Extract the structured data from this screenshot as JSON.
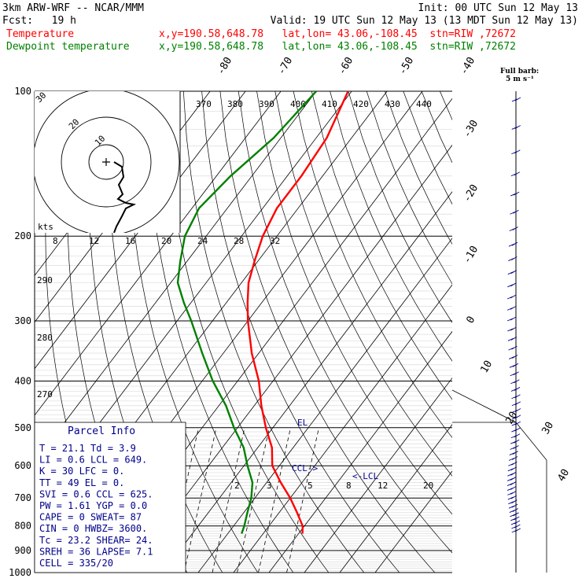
{
  "header": {
    "model": "3km ARW-WRF -- NCAR/MMM",
    "init": "Init: 00 UTC Sun 12 May 13",
    "fcst": "Fcst:   19 h",
    "valid": "Valid: 19 UTC Sun 12 May 13 (13 MDT Sun 12 May 13)",
    "temp_label": "Temperature",
    "dew_label": "Dewpoint temperature",
    "loc_info": "x,y=190.58,648.78   lat,lon= 43.06,-108.45  stn=RIW ,72672"
  },
  "colors": {
    "temperature": "#ff0000",
    "dewpoint": "#008000",
    "parcel_text": "#00008b",
    "grid": "#000000"
  },
  "chart_data": {
    "type": "line",
    "pressure_ticks": [
      "100",
      "200",
      "300",
      "400",
      "500",
      "600",
      "700",
      "800",
      "900",
      "1000"
    ],
    "isotherm_labels": [
      "-80",
      "-70",
      "-60",
      "-50",
      "-40",
      "-30",
      "-20",
      "-10",
      "0",
      "10",
      "20",
      "30",
      "40"
    ],
    "theta_labels": [
      "370",
      "380",
      "390",
      "400",
      "410",
      "420",
      "430",
      "440"
    ],
    "theta_side_labels": [
      "290",
      "280",
      "270"
    ],
    "mixing_ratio_labels": [
      "2",
      "3",
      "5",
      "8",
      "12",
      "20"
    ],
    "hodo_speed_labels": [
      "8",
      "12",
      "16",
      "20",
      "24",
      "28",
      "32"
    ],
    "hodo_unit": "kts",
    "hodo_ring_labels": [
      "30",
      "20",
      "10"
    ],
    "barb_legend": [
      "Full barb:",
      "5 m s⁻¹"
    ],
    "series": [
      {
        "name": "Temperature",
        "points": [
          [
            100,
            -61
          ],
          [
            125,
            -57
          ],
          [
            150,
            -56
          ],
          [
            175,
            -56
          ],
          [
            200,
            -54
          ],
          [
            225,
            -51
          ],
          [
            250,
            -48
          ],
          [
            275,
            -44
          ],
          [
            300,
            -40
          ],
          [
            350,
            -32
          ],
          [
            400,
            -24
          ],
          [
            450,
            -18
          ],
          [
            500,
            -12
          ],
          [
            550,
            -6
          ],
          [
            600,
            -2
          ],
          [
            650,
            4
          ],
          [
            700,
            10
          ],
          [
            750,
            15
          ],
          [
            800,
            19.5
          ],
          [
            830,
            21.1
          ]
        ]
      },
      {
        "name": "Dewpoint temperature",
        "points": [
          [
            100,
            -70
          ],
          [
            125,
            -72
          ],
          [
            150,
            -76
          ],
          [
            175,
            -78
          ],
          [
            200,
            -76
          ],
          [
            225,
            -72
          ],
          [
            250,
            -68
          ],
          [
            275,
            -62
          ],
          [
            300,
            -56
          ],
          [
            350,
            -46
          ],
          [
            400,
            -37
          ],
          [
            450,
            -28
          ],
          [
            500,
            -21
          ],
          [
            550,
            -14
          ],
          [
            600,
            -9
          ],
          [
            650,
            -4
          ],
          [
            700,
            -1
          ],
          [
            750,
            1
          ],
          [
            800,
            3
          ],
          [
            830,
            3.9
          ]
        ]
      }
    ],
    "annotations": {
      "lcl": "<-LCL",
      "ccl": "CCL->",
      "el": "EL"
    }
  },
  "parcel_info": {
    "title": "Parcel Info",
    "rows": [
      "T  =    21.1  Td =   3.9",
      "LI =     0.6  LCL =  649.",
      "K  =      30  LFC =    0.",
      "TT =      49  EL =     0.",
      "SVI =    0.6  CCL =  625.",
      "PW =    1.61  YGP =   0.0",
      "CAPE =     0  SWEAT=   87",
      "CIN  =     0  HWBZ= 3600.",
      "Tc  =   23.2  SHEAR=  24.",
      "SREH =    36  LAPSE=  7.1",
      "CELL = 335/20"
    ]
  }
}
